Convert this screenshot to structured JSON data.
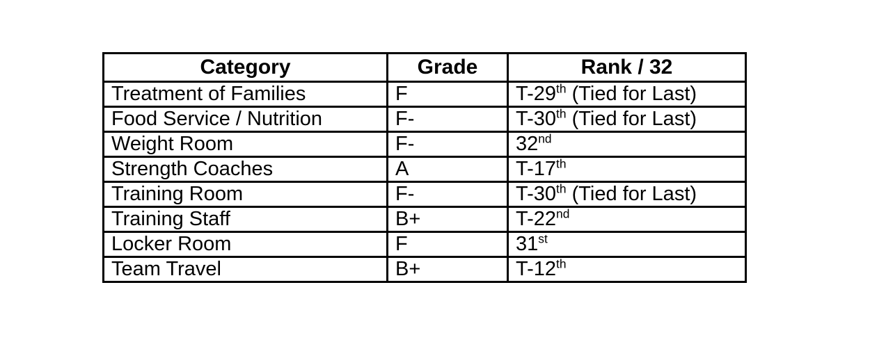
{
  "table": {
    "headers": [
      "Category",
      "Grade",
      "Rank / 32"
    ],
    "rows": [
      {
        "category": "Treatment of Families",
        "grade": "F",
        "rank_base": "T-29",
        "rank_sup": "th",
        "rank_note": " (Tied for Last)"
      },
      {
        "category": "Food Service / Nutrition",
        "grade": "F-",
        "rank_base": "T-30",
        "rank_sup": "th",
        "rank_note": " (Tied for Last)"
      },
      {
        "category": "Weight Room",
        "grade": "F-",
        "rank_base": "32",
        "rank_sup": "nd",
        "rank_note": ""
      },
      {
        "category": "Strength Coaches",
        "grade": "A",
        "rank_base": "T-17",
        "rank_sup": "th",
        "rank_note": ""
      },
      {
        "category": "Training Room",
        "grade": "F-",
        "rank_base": "T-30",
        "rank_sup": "th",
        "rank_note": " (Tied for Last)"
      },
      {
        "category": "Training Staff",
        "grade": "B+",
        "rank_base": "T-22",
        "rank_sup": "nd",
        "rank_note": ""
      },
      {
        "category": "Locker Room",
        "grade": "F",
        "rank_base": "31",
        "rank_sup": "st",
        "rank_note": ""
      },
      {
        "category": "Team Travel",
        "grade": "B+",
        "rank_base": "T-12",
        "rank_sup": "th",
        "rank_note": ""
      }
    ]
  }
}
